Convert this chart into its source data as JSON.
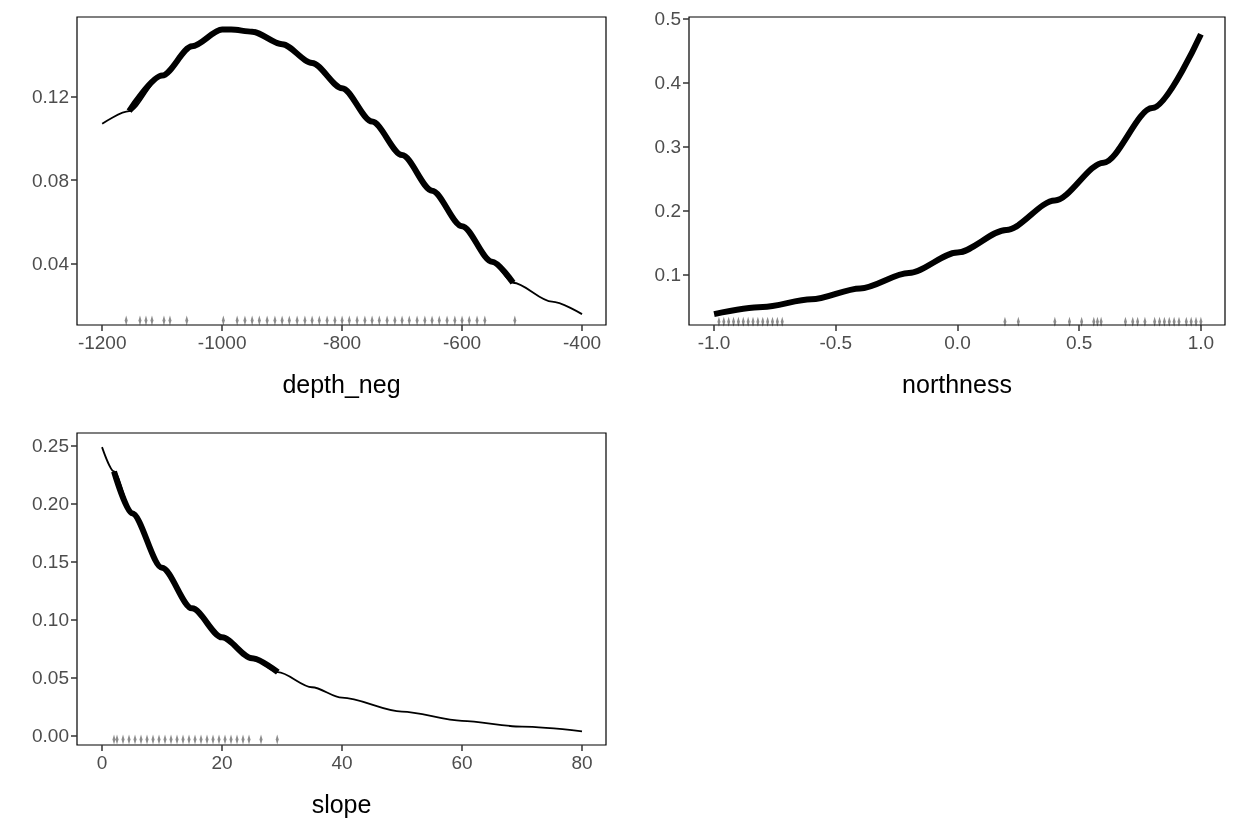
{
  "chart_data": [
    {
      "type": "line",
      "xlabel": "depth_neg",
      "xlim": [
        -1242,
        -360
      ],
      "xticks": [
        -1200,
        -1000,
        -800,
        -600,
        -400
      ],
      "ylim": [
        0.0108,
        0.158
      ],
      "yticks": [
        0.04,
        0.08,
        0.12
      ],
      "grid": false,
      "series": [
        {
          "color": "#000000",
          "x": [
            -1200,
            -1155,
            -1100,
            -1050,
            -1000,
            -985,
            -950,
            -900,
            -850,
            -800,
            -750,
            -700,
            -650,
            -600,
            -550,
            -515,
            -450,
            -400
          ],
          "values": [
            0.107,
            0.113,
            0.13,
            0.144,
            0.152,
            0.152,
            0.151,
            0.145,
            0.136,
            0.124,
            0.108,
            0.092,
            0.075,
            0.058,
            0.041,
            0.031,
            0.022,
            0.016
          ]
        },
        {
          "color": "#000000",
          "x": [
            -1155,
            -1100,
            -1050,
            -1000,
            -985,
            -950,
            -900,
            -850,
            -800,
            -750,
            -700,
            -650,
            -600,
            -550,
            -515
          ],
          "values": [
            0.113,
            0.13,
            0.144,
            0.152,
            0.152,
            0.151,
            0.145,
            0.136,
            0.124,
            0.108,
            0.092,
            0.075,
            0.058,
            0.041,
            0.031
          ]
        },
        {
          "type": "scatter",
          "color": "#000000",
          "x": [
            -1160,
            -1137,
            -1127,
            -1117,
            -1097,
            -1087,
            -1059,
            -998,
            -975,
            -962,
            -950,
            -938,
            -925,
            -912,
            -900,
            -888,
            -875,
            -862,
            -850,
            -838,
            -825,
            -812,
            -800,
            -788,
            -775,
            -762,
            -750,
            -738,
            -725,
            -712,
            -700,
            -688,
            -675,
            -662,
            -650,
            -638,
            -625,
            -612,
            -600,
            -588,
            -575,
            -562,
            -512
          ],
          "values": [
            0.013,
            0.013,
            0.013,
            0.013,
            0.013,
            0.013,
            0.013,
            0.013,
            0.013,
            0.013,
            0.013,
            0.013,
            0.013,
            0.013,
            0.013,
            0.013,
            0.013,
            0.013,
            0.013,
            0.013,
            0.013,
            0.013,
            0.013,
            0.013,
            0.013,
            0.013,
            0.013,
            0.013,
            0.013,
            0.013,
            0.013,
            0.013,
            0.013,
            0.013,
            0.013,
            0.013,
            0.013,
            0.013,
            0.013,
            0.013,
            0.013,
            0.013,
            0.013
          ]
        }
      ]
    },
    {
      "type": "line",
      "xlabel": "northness",
      "xlim": [
        -1.103,
        1.099
      ],
      "xticks": [
        {
          "value": -1,
          "label": "-1.0"
        },
        {
          "value": -0.5,
          "label": "-0.5"
        },
        {
          "value": 0,
          "label": "0.0"
        },
        {
          "value": 0.5,
          "label": "0.5"
        },
        {
          "value": 1,
          "label": "1.0"
        }
      ],
      "ylim": [
        0.022,
        0.502
      ],
      "yticks": [
        0.1,
        0.2,
        0.3,
        0.4,
        0.5
      ],
      "grid": false,
      "series": [
        {
          "color": "#000000",
          "x": [
            -1,
            -0.8,
            -0.6,
            -0.4,
            -0.2,
            0,
            0.2,
            0.4,
            0.6,
            0.8,
            1
          ],
          "values": [
            0.039,
            0.05,
            0.062,
            0.079,
            0.103,
            0.135,
            0.17,
            0.216,
            0.275,
            0.36,
            0.475
          ]
        },
        {
          "type": "scatter",
          "color": "#000000",
          "x": [
            -0.98,
            -0.96,
            -0.94,
            -0.92,
            -0.9,
            -0.88,
            -0.86,
            -0.84,
            -0.82,
            -0.8,
            -0.78,
            -0.76,
            -0.74,
            -0.72,
            0.195,
            0.25,
            0.4,
            0.46,
            0.51,
            0.56,
            0.575,
            0.59,
            0.69,
            0.72,
            0.74,
            0.77,
            0.81,
            0.83,
            0.85,
            0.87,
            0.89,
            0.91,
            0.94,
            0.96,
            0.98,
            1.0
          ],
          "values": [
            0.027,
            0.027,
            0.027,
            0.027,
            0.027,
            0.027,
            0.027,
            0.027,
            0.027,
            0.027,
            0.027,
            0.027,
            0.027,
            0.027,
            0.027,
            0.027,
            0.027,
            0.027,
            0.027,
            0.027,
            0.027,
            0.027,
            0.027,
            0.027,
            0.027,
            0.027,
            0.027,
            0.027,
            0.027,
            0.027,
            0.027,
            0.027,
            0.027,
            0.027,
            0.027,
            0.027
          ]
        }
      ]
    },
    {
      "type": "line",
      "xlabel": "slope",
      "xlim": [
        -4.17,
        84
      ],
      "xticks": [
        0,
        20,
        40,
        60,
        80
      ],
      "ylim": [
        -0.0078,
        0.2612
      ],
      "yticks": [
        {
          "value": 0,
          "label": "0.00"
        },
        {
          "value": 0.05,
          "label": "0.05"
        },
        {
          "value": 0.1,
          "label": "0.10"
        },
        {
          "value": 0.15,
          "label": "0.15"
        },
        {
          "value": 0.2,
          "label": "0.20"
        },
        {
          "value": 0.25,
          "label": "0.25"
        }
      ],
      "grid": false,
      "series": [
        {
          "color": "#000000",
          "x": [
            0,
            2,
            5,
            10,
            15,
            20,
            25,
            29.3,
            35,
            40,
            50,
            60,
            70,
            80
          ],
          "values": [
            0.249,
            0.228,
            0.192,
            0.145,
            0.11,
            0.085,
            0.067,
            0.055,
            0.042,
            0.033,
            0.021,
            0.013,
            0.008,
            0.004
          ]
        },
        {
          "color": "#000000",
          "x": [
            2,
            5,
            10,
            15,
            20,
            25,
            29.3
          ],
          "values": [
            0.228,
            0.192,
            0.145,
            0.11,
            0.085,
            0.067,
            0.055
          ]
        },
        {
          "type": "scatter",
          "color": "#000000",
          "x": [
            2,
            2.5,
            3.5,
            4.5,
            5.5,
            6.5,
            7.5,
            8.5,
            9.5,
            10.5,
            11.5,
            12.5,
            13.5,
            14.5,
            15.5,
            16.5,
            17.5,
            18.5,
            19.5,
            20.5,
            21.5,
            22.5,
            23.5,
            24.5,
            26.5,
            29.2
          ],
          "values": [
            -0.003,
            -0.003,
            -0.003,
            -0.003,
            -0.003,
            -0.003,
            -0.003,
            -0.003,
            -0.003,
            -0.003,
            -0.003,
            -0.003,
            -0.003,
            -0.003,
            -0.003,
            -0.003,
            -0.003,
            -0.003,
            -0.003,
            -0.003,
            -0.003,
            -0.003,
            -0.003,
            -0.003,
            -0.003,
            -0.003
          ]
        }
      ]
    }
  ]
}
